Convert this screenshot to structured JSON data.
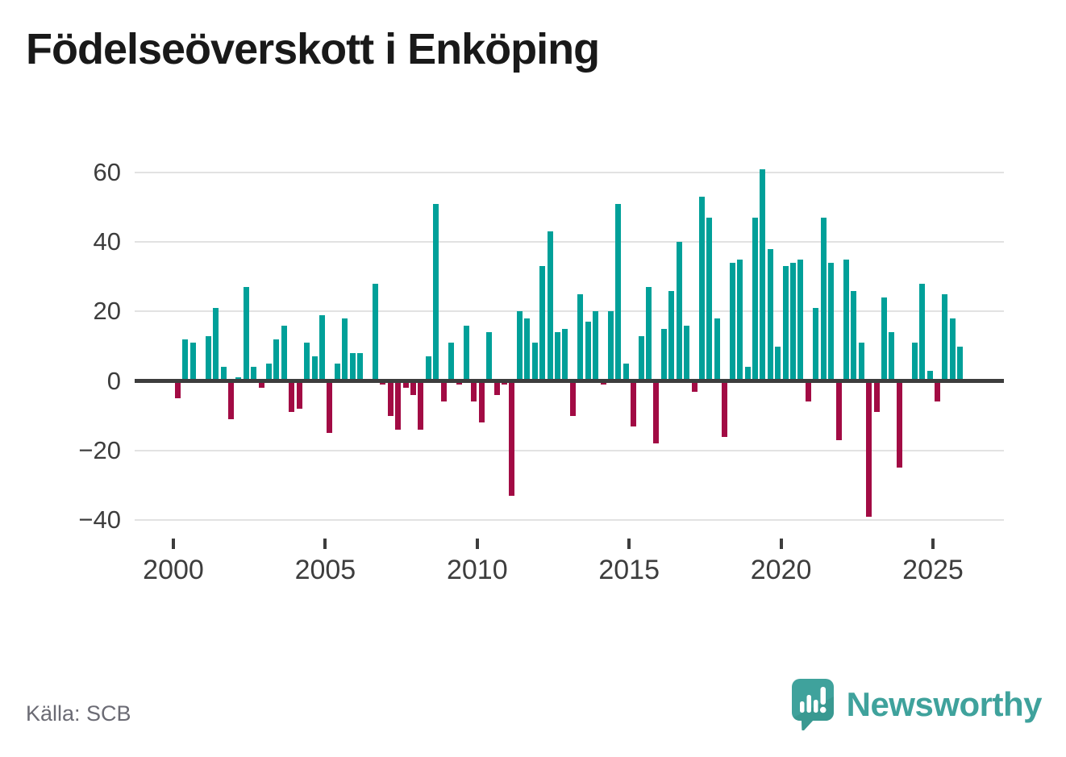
{
  "header": {
    "title": "Födelseöverskott i Enköping"
  },
  "footer": {
    "source": "Källa: SCB",
    "brand": "Newsworthy",
    "logo_icon": "bar-chart-speech-bubble-icon"
  },
  "colors": {
    "positive": "#00a099",
    "negative": "#a20b44",
    "grid": "#e2e2e2",
    "zero_line": "#3d3d3d",
    "axis_text": "#3d3d3d",
    "title_text": "#191919",
    "source_text": "#6b6b74",
    "brand_teal": "#3fa29c"
  },
  "chart_data": {
    "type": "bar",
    "title": "Födelseöverskott i Enköping",
    "frequency": "quarterly",
    "x_start_year": 2000,
    "periods_per_year": 4,
    "x_tick_years": [
      2000,
      2005,
      2010,
      2015,
      2020,
      2025
    ],
    "y_ticks": [
      60,
      40,
      20,
      0,
      -20,
      -40
    ],
    "y_tick_labels": [
      "60",
      "40",
      "20",
      "0",
      "−20",
      "−40"
    ],
    "ylim": [
      -40,
      60
    ],
    "grid": true,
    "legend": "none",
    "values": [
      -5,
      12,
      11,
      0,
      13,
      21,
      4,
      -11,
      1,
      27,
      4,
      -2,
      5,
      12,
      16,
      -9,
      -8,
      11,
      7,
      19,
      -15,
      5,
      18,
      8,
      8,
      0,
      28,
      -1,
      -10,
      -14,
      -2,
      -4,
      -14,
      7,
      51,
      -6,
      11,
      -1,
      16,
      -6,
      -12,
      14,
      -4,
      -1,
      -33,
      20,
      18,
      11,
      33,
      43,
      14,
      15,
      -10,
      25,
      17,
      20,
      -1,
      20,
      51,
      5,
      -13,
      13,
      27,
      -18,
      15,
      26,
      40,
      16,
      -3,
      53,
      47,
      18,
      -16,
      34,
      35,
      4,
      47,
      61,
      38,
      10,
      33,
      34,
      35,
      -6,
      21,
      47,
      34,
      -17,
      35,
      26,
      11,
      -39,
      -9,
      24,
      14,
      -25,
      0,
      11,
      28,
      3,
      -6,
      25,
      18,
      10
    ]
  }
}
